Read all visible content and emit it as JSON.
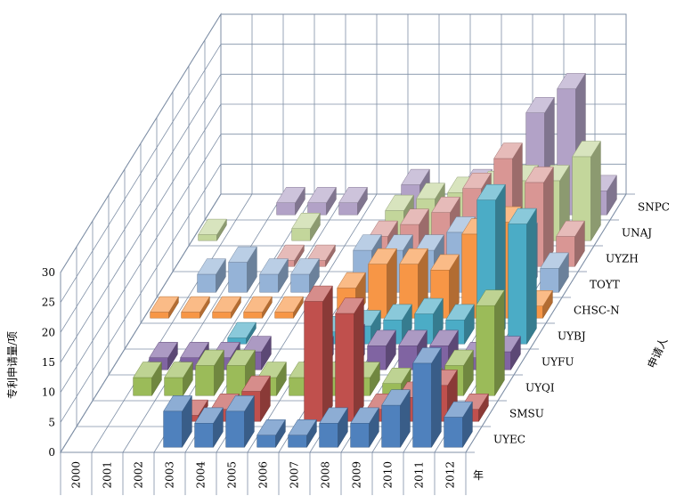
{
  "chart_data": {
    "type": "bar",
    "subtype": "3d-column",
    "ylabel": "专利申请量/项",
    "xlabel": "年",
    "zlabel": "申请人",
    "ylim": [
      0,
      30
    ],
    "yticks": [
      0,
      5,
      10,
      15,
      20,
      25,
      30
    ],
    "categories": [
      "2000",
      "2001",
      "2002",
      "2003",
      "2004",
      "2005",
      "2006",
      "2007",
      "2008",
      "2009",
      "2010",
      "2011",
      "2012"
    ],
    "series": [
      {
        "name": "UYEC",
        "color": "#4f81bd",
        "values": [
          0,
          0,
          0,
          6,
          4,
          6,
          2,
          2,
          4,
          4,
          7,
          14,
          5
        ]
      },
      {
        "name": "SMSU",
        "color": "#c0504d",
        "values": [
          0,
          0,
          0,
          1,
          2,
          5,
          0,
          20,
          18,
          2,
          4,
          6,
          2
        ]
      },
      {
        "name": "UYQI",
        "color": "#9bbb59",
        "values": [
          0,
          3,
          3,
          5,
          5,
          3,
          3,
          3,
          3,
          2,
          2,
          5,
          15
        ]
      },
      {
        "name": "UYFU",
        "color": "#8064a2",
        "values": [
          0,
          2,
          2,
          2,
          3,
          0,
          3,
          5,
          4,
          4,
          4,
          2,
          3
        ]
      },
      {
        "name": "UYBJ",
        "color": "#4bacc6",
        "values": [
          0,
          0,
          0,
          1,
          0,
          0,
          2,
          3,
          4,
          5,
          4,
          24,
          20
        ]
      },
      {
        "name": "CHSC-N",
        "color": "#f79646",
        "values": [
          1,
          1,
          1,
          1,
          1,
          0,
          5,
          9,
          9,
          8,
          14,
          16,
          2
        ]
      },
      {
        "name": "TOYT",
        "color": "#95b3d7",
        "values": [
          0,
          3,
          5,
          3,
          3,
          0,
          7,
          7,
          7,
          10,
          2,
          9,
          4
        ]
      },
      {
        "name": "UYZH",
        "color": "#d99694",
        "values": [
          0,
          0,
          0,
          1,
          1,
          0,
          5,
          7,
          9,
          13,
          18,
          14,
          5
        ]
      },
      {
        "name": "UNAJ",
        "color": "#c3d69b",
        "values": [
          1,
          0,
          0,
          2,
          0,
          0,
          5,
          7,
          8,
          9,
          10,
          10,
          14
        ]
      },
      {
        "name": "SNPC",
        "color": "#b2a2c7",
        "values": [
          0,
          0,
          2,
          2,
          2,
          0,
          5,
          0,
          5,
          2,
          17,
          21,
          4
        ]
      }
    ]
  }
}
